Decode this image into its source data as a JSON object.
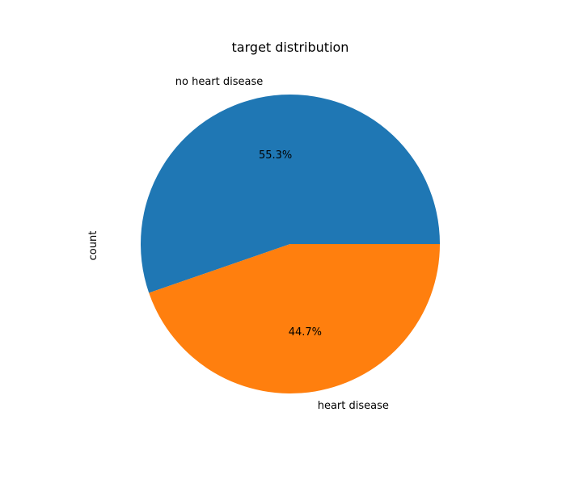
{
  "chart_data": {
    "type": "pie",
    "title": "target distribution",
    "ylabel": "count",
    "start_angle": "0° (3 o'clock), counterclockwise",
    "slices": [
      {
        "label": "no heart disease",
        "percent": 55.3,
        "percent_label": "55.3%",
        "color": "#1f77b4"
      },
      {
        "label": "heart disease",
        "percent": 44.7,
        "percent_label": "44.7%",
        "color": "#ff7f0e"
      }
    ]
  }
}
